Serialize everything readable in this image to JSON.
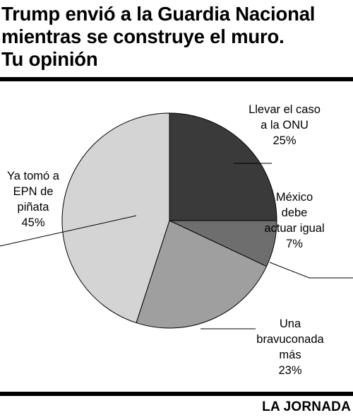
{
  "title_lines": [
    "Trump envió a la Guardia Nacional",
    "mientras se construye el muro.",
    "Tu opinión"
  ],
  "source": "LA JORNADA",
  "chart_data": {
    "type": "pie",
    "title": "Trump envió a la Guardia Nacional mientras se construye el muro. Tu opinión",
    "start_angle_deg": 0,
    "direction": "clockwise",
    "slices": [
      {
        "label_lines": [
          "Llevar el caso",
          "a la ONU"
        ],
        "value": 25,
        "value_label": "25%",
        "color": "#3a3a3a"
      },
      {
        "label_lines": [
          "México",
          "debe",
          "actuar igual"
        ],
        "value": 7,
        "value_label": "7%",
        "color": "#6e6e6e"
      },
      {
        "label_lines": [
          "Una",
          "bravuconada",
          "más"
        ],
        "value": 23,
        "value_label": "23%",
        "color": "#9f9f9f"
      },
      {
        "label_lines": [
          "Ya tomó a",
          "EPN de",
          "piñata"
        ],
        "value": 45,
        "value_label": "45%",
        "color": "#d4d4d4"
      }
    ]
  }
}
